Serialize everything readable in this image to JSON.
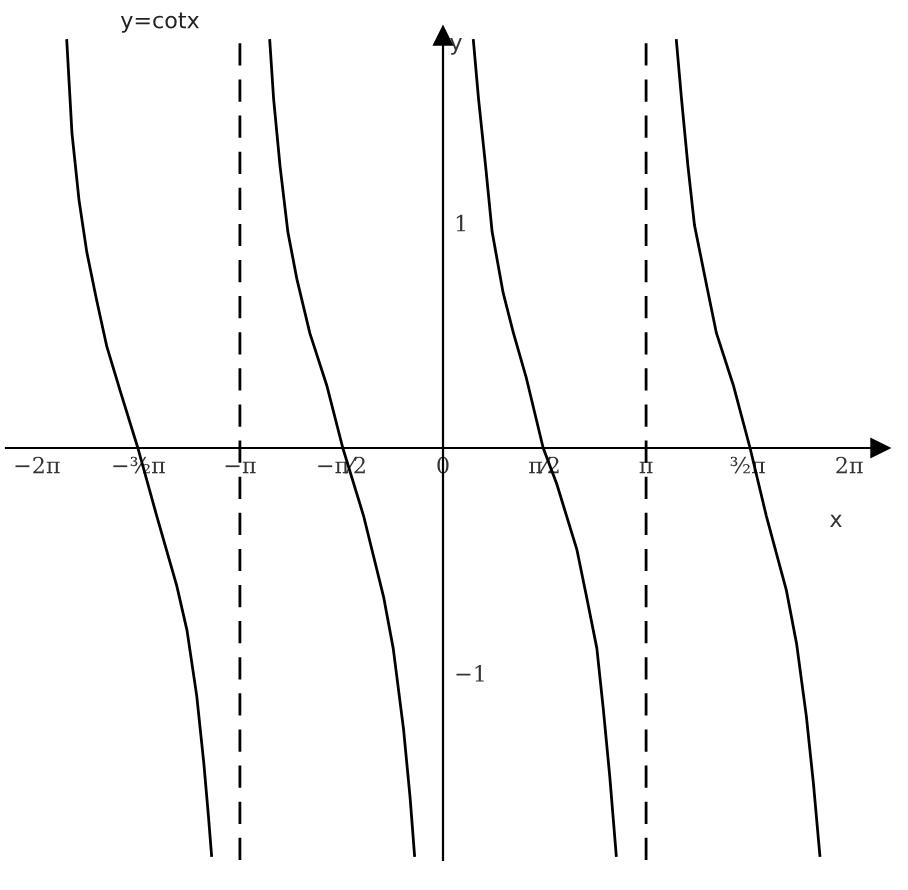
{
  "chart_data": {
    "type": "line",
    "title": "y=cotx",
    "xlabel": "x",
    "ylabel": "y",
    "xlim": [
      -6.76,
      6.76
    ],
    "ylim": [
      -1.83,
      1.83
    ],
    "xticks": [
      {
        "value": -6.2832,
        "label": "−2π"
      },
      {
        "value": -4.7124,
        "label": "−³⁄₂π"
      },
      {
        "value": -3.1416,
        "label": "−π"
      },
      {
        "value": -1.5708,
        "label": "−π⁄2"
      },
      0,
      {
        "value": 1.5708,
        "label": "π⁄2"
      },
      {
        "value": 3.1416,
        "label": "π"
      },
      {
        "value": 4.7124,
        "label": "³⁄₂π"
      },
      {
        "value": 6.2832,
        "label": "2π"
      }
    ],
    "yticks": [
      {
        "value": -1,
        "label": "−1"
      },
      1
    ],
    "ref_lines": [
      {
        "axis": "x",
        "value": -3.1416,
        "color": "#000000",
        "line_style": "dashed"
      },
      {
        "axis": "x",
        "value": 3.1416,
        "color": "#000000",
        "line_style": "dashed"
      }
    ],
    "series": [
      {
        "color": "#000000",
        "x": [
          -5.82,
          -5.74,
          -5.63,
          -5.51,
          -5.36,
          -5.2,
          -4.99,
          -4.72,
          -4.43,
          -4.12,
          -3.96,
          -3.81,
          -3.7,
          -3.63,
          -3.58
        ],
        "values": [
          1.81,
          1.4,
          1.1,
          0.87,
          0.66,
          0.45,
          0.25,
          0,
          -0.3,
          -0.61,
          -0.81,
          -1.1,
          -1.4,
          -1.63,
          -1.81
        ]
      },
      {
        "color": "#000000",
        "x": [
          -2.68,
          -2.62,
          -2.52,
          -2.4,
          -2.26,
          -2.06,
          -1.8,
          -1.55,
          -1.23,
          -0.92,
          -0.77,
          -0.61,
          -0.51,
          -0.44
        ],
        "values": [
          1.81,
          1.55,
          1.25,
          0.96,
          0.75,
          0.51,
          0.28,
          0,
          -0.3,
          -0.66,
          -0.89,
          -1.25,
          -1.55,
          -1.81
        ]
      },
      {
        "color": "#000000",
        "x": [
          0.47,
          0.55,
          0.66,
          0.76,
          0.93,
          1.09,
          1.29,
          1.55,
          1.76,
          2.07,
          2.22,
          2.38,
          2.48,
          2.58,
          2.68
        ],
        "values": [
          1.81,
          1.55,
          1.25,
          0.96,
          0.69,
          0.51,
          0.31,
          0,
          -0.16,
          -0.45,
          -0.66,
          -0.89,
          -1.16,
          -1.46,
          -1.81
        ]
      },
      {
        "color": "#000000",
        "x": [
          3.61,
          3.69,
          3.79,
          3.89,
          4.08,
          4.23,
          4.49,
          4.75,
          5.0,
          5.31,
          5.47,
          5.62,
          5.73,
          5.83
        ],
        "values": [
          1.81,
          1.55,
          1.25,
          0.99,
          0.72,
          0.51,
          0.28,
          0,
          -0.3,
          -0.63,
          -0.87,
          -1.19,
          -1.49,
          -1.81
        ]
      }
    ]
  }
}
